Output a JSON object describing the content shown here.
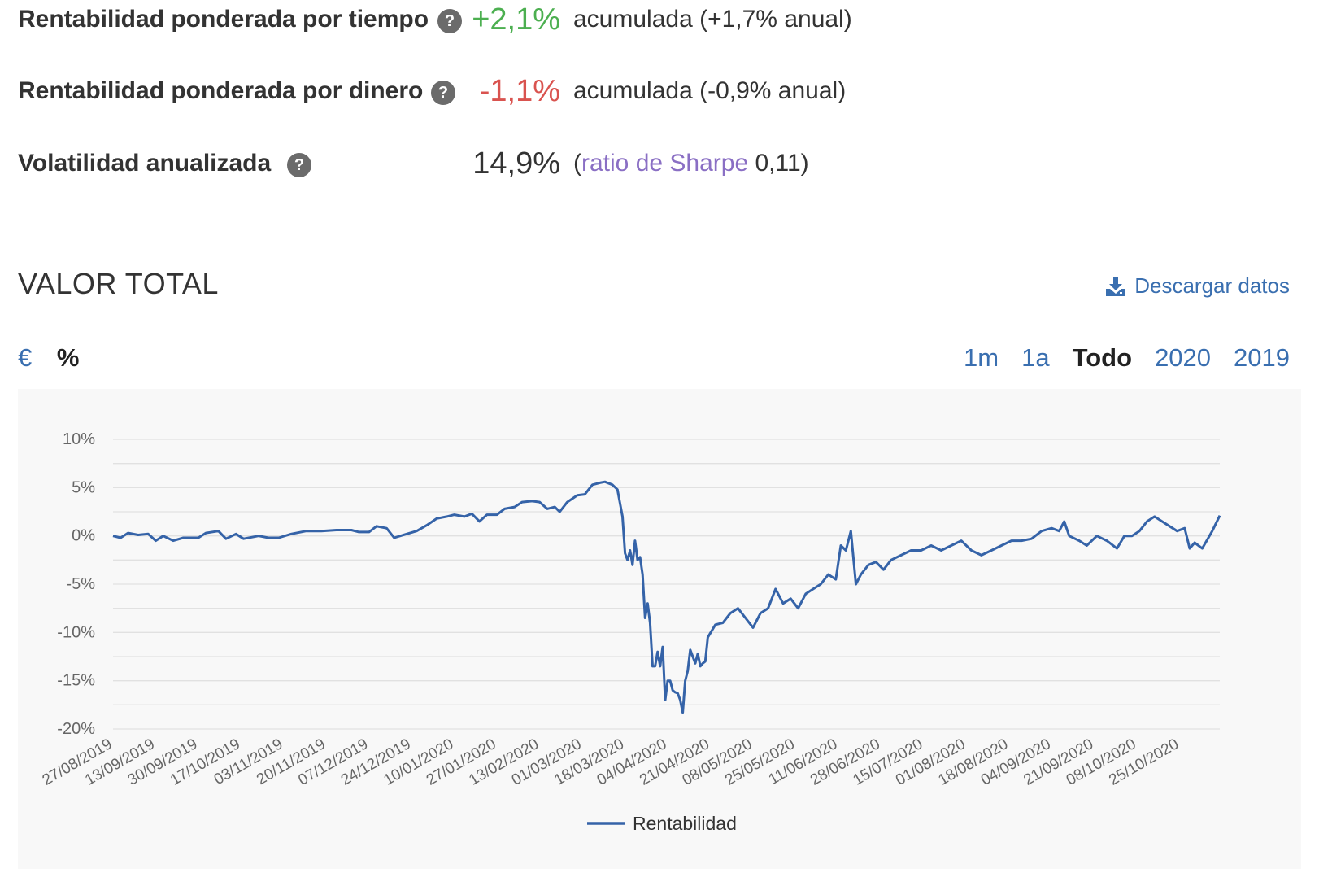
{
  "metrics": [
    {
      "label": "Rentabilidad ponderada por tiempo",
      "value": "+2,1%",
      "value_tone": "positive",
      "detail": "acumulada (+1,7% anual)"
    },
    {
      "label": "Rentabilidad ponderada por dinero",
      "value": "-1,1%",
      "value_tone": "negative",
      "detail": "acumulada (-0,9% anual)"
    },
    {
      "label": "Volatilidad anualizada",
      "value": "14,9%",
      "value_tone": "neutral",
      "detail_prefix": "(",
      "detail_link": "ratio de Sharpe",
      "detail_suffix": " 0,11)"
    }
  ],
  "help_icon_glyph": "?",
  "section_title": "VALOR TOTAL",
  "download_label": "Descargar datos",
  "unit_toggle": [
    {
      "label": "€",
      "active": false
    },
    {
      "label": "%",
      "active": true
    }
  ],
  "range_toggle": [
    {
      "label": "1m",
      "active": false
    },
    {
      "label": "1a",
      "active": false
    },
    {
      "label": "Todo",
      "active": true
    },
    {
      "label": "2020",
      "active": false
    },
    {
      "label": "2019",
      "active": false
    }
  ],
  "colors": {
    "line": "#3563a8",
    "positive": "#4caf50",
    "negative": "#d9534f",
    "link": "#3a6fb0",
    "sharpe_link": "#8a6fc4",
    "grid": "#e1e1e1",
    "chart_bg": "#f8f8f8"
  },
  "chart_data": {
    "type": "line",
    "title": "",
    "xlabel": "",
    "ylabel": "",
    "ylim": [
      -20,
      10
    ],
    "y_ticks": [
      10,
      5,
      0,
      -5,
      -10,
      -15,
      -20
    ],
    "y_tick_labels": [
      "10%",
      "5%",
      "0%",
      "-5%",
      "-10%",
      "-15%",
      "-20%"
    ],
    "x_range": [
      "2019-08-27",
      "2020-11-10"
    ],
    "x_ticks": [
      "2019-08-27",
      "2019-09-13",
      "2019-09-30",
      "2019-10-17",
      "2019-11-03",
      "2019-11-20",
      "2019-12-07",
      "2019-12-24",
      "2020-01-10",
      "2020-01-27",
      "2020-02-13",
      "2020-03-01",
      "2020-03-18",
      "2020-04-04",
      "2020-04-21",
      "2020-05-08",
      "2020-05-25",
      "2020-06-11",
      "2020-06-28",
      "2020-07-15",
      "2020-08-01",
      "2020-08-18",
      "2020-09-04",
      "2020-09-21",
      "2020-10-08",
      "2020-10-25"
    ],
    "x_tick_labels": [
      "27/08/2019",
      "13/09/2019",
      "30/09/2019",
      "17/10/2019",
      "03/11/2019",
      "20/11/2019",
      "07/12/2019",
      "24/12/2019",
      "10/01/2020",
      "27/01/2020",
      "13/02/2020",
      "01/03/2020",
      "18/03/2020",
      "04/04/2020",
      "21/04/2020",
      "08/05/2020",
      "25/05/2020",
      "11/06/2020",
      "28/06/2020",
      "15/07/2020",
      "01/08/2020",
      "18/08/2020",
      "04/09/2020",
      "21/09/2020",
      "08/10/2020",
      "25/10/2020"
    ],
    "grid": true,
    "legend_position": "bottom-center",
    "series": [
      {
        "name": "Rentabilidad",
        "values": [
          [
            "2019-08-27",
            0.0
          ],
          [
            "2019-08-30",
            -0.2
          ],
          [
            "2019-09-02",
            0.3
          ],
          [
            "2019-09-06",
            0.1
          ],
          [
            "2019-09-10",
            0.2
          ],
          [
            "2019-09-13",
            -0.5
          ],
          [
            "2019-09-16",
            0.0
          ],
          [
            "2019-09-20",
            -0.5
          ],
          [
            "2019-09-24",
            -0.2
          ],
          [
            "2019-09-30",
            -0.2
          ],
          [
            "2019-10-03",
            0.3
          ],
          [
            "2019-10-08",
            0.5
          ],
          [
            "2019-10-11",
            -0.3
          ],
          [
            "2019-10-15",
            0.2
          ],
          [
            "2019-10-18",
            -0.3
          ],
          [
            "2019-10-24",
            0.0
          ],
          [
            "2019-10-28",
            -0.2
          ],
          [
            "2019-11-01",
            -0.2
          ],
          [
            "2019-11-06",
            0.2
          ],
          [
            "2019-11-12",
            0.5
          ],
          [
            "2019-11-18",
            0.5
          ],
          [
            "2019-11-24",
            0.6
          ],
          [
            "2019-11-30",
            0.6
          ],
          [
            "2019-12-03",
            0.4
          ],
          [
            "2019-12-07",
            0.4
          ],
          [
            "2019-12-10",
            1.0
          ],
          [
            "2019-12-14",
            0.8
          ],
          [
            "2019-12-17",
            -0.2
          ],
          [
            "2019-12-22",
            0.2
          ],
          [
            "2019-12-26",
            0.5
          ],
          [
            "2019-12-30",
            1.1
          ],
          [
            "2020-01-03",
            1.8
          ],
          [
            "2020-01-07",
            2.0
          ],
          [
            "2020-01-10",
            2.2
          ],
          [
            "2020-01-14",
            2.0
          ],
          [
            "2020-01-17",
            2.3
          ],
          [
            "2020-01-20",
            1.5
          ],
          [
            "2020-01-23",
            2.2
          ],
          [
            "2020-01-27",
            2.2
          ],
          [
            "2020-01-30",
            2.8
          ],
          [
            "2020-02-03",
            3.0
          ],
          [
            "2020-02-06",
            3.5
          ],
          [
            "2020-02-10",
            3.6
          ],
          [
            "2020-02-13",
            3.5
          ],
          [
            "2020-02-16",
            2.8
          ],
          [
            "2020-02-19",
            3.0
          ],
          [
            "2020-02-21",
            2.5
          ],
          [
            "2020-02-24",
            3.5
          ],
          [
            "2020-02-28",
            4.2
          ],
          [
            "2020-03-02",
            4.3
          ],
          [
            "2020-03-05",
            5.3
          ],
          [
            "2020-03-08",
            5.5
          ],
          [
            "2020-03-10",
            5.6
          ],
          [
            "2020-03-13",
            5.3
          ],
          [
            "2020-03-15",
            4.8
          ],
          [
            "2020-03-17",
            2.0
          ],
          [
            "2020-03-18",
            -1.8
          ],
          [
            "2020-03-19",
            -2.5
          ],
          [
            "2020-03-20",
            -1.5
          ],
          [
            "2020-03-21",
            -3.0
          ],
          [
            "2020-03-22",
            -0.5
          ],
          [
            "2020-03-23",
            -2.5
          ],
          [
            "2020-03-24",
            -2.2
          ],
          [
            "2020-03-25",
            -4.0
          ],
          [
            "2020-03-26",
            -8.5
          ],
          [
            "2020-03-27",
            -7.0
          ],
          [
            "2020-03-28",
            -9.0
          ],
          [
            "2020-03-29",
            -13.5
          ],
          [
            "2020-03-30",
            -13.5
          ],
          [
            "2020-03-31",
            -12.0
          ],
          [
            "2020-04-01",
            -13.5
          ],
          [
            "2020-04-02",
            -11.5
          ],
          [
            "2020-04-03",
            -17.0
          ],
          [
            "2020-04-04",
            -15.0
          ],
          [
            "2020-04-05",
            -15.0
          ],
          [
            "2020-04-06",
            -16.0
          ],
          [
            "2020-04-07",
            -16.2
          ],
          [
            "2020-04-08",
            -16.3
          ],
          [
            "2020-04-09",
            -17.0
          ],
          [
            "2020-04-10",
            -18.3
          ],
          [
            "2020-04-11",
            -15.0
          ],
          [
            "2020-04-12",
            -14.0
          ],
          [
            "2020-04-13",
            -11.8
          ],
          [
            "2020-04-14",
            -12.5
          ],
          [
            "2020-04-15",
            -13.2
          ],
          [
            "2020-04-16",
            -12.2
          ],
          [
            "2020-04-17",
            -13.5
          ],
          [
            "2020-04-18",
            -13.2
          ],
          [
            "2020-04-19",
            -13.0
          ],
          [
            "2020-04-20",
            -10.5
          ],
          [
            "2020-04-23",
            -9.2
          ],
          [
            "2020-04-26",
            -9.0
          ],
          [
            "2020-04-29",
            -8.0
          ],
          [
            "2020-05-02",
            -7.5
          ],
          [
            "2020-05-05",
            -8.5
          ],
          [
            "2020-05-08",
            -9.5
          ],
          [
            "2020-05-11",
            -8.0
          ],
          [
            "2020-05-14",
            -7.5
          ],
          [
            "2020-05-17",
            -5.5
          ],
          [
            "2020-05-20",
            -7.0
          ],
          [
            "2020-05-23",
            -6.5
          ],
          [
            "2020-05-26",
            -7.5
          ],
          [
            "2020-05-29",
            -6.0
          ],
          [
            "2020-06-01",
            -5.5
          ],
          [
            "2020-06-04",
            -5.0
          ],
          [
            "2020-06-07",
            -4.0
          ],
          [
            "2020-06-10",
            -4.5
          ],
          [
            "2020-06-12",
            -1.0
          ],
          [
            "2020-06-14",
            -1.5
          ],
          [
            "2020-06-16",
            0.5
          ],
          [
            "2020-06-18",
            -5.0
          ],
          [
            "2020-06-20",
            -4.0
          ],
          [
            "2020-06-23",
            -3.0
          ],
          [
            "2020-06-26",
            -2.7
          ],
          [
            "2020-06-29",
            -3.5
          ],
          [
            "2020-07-02",
            -2.5
          ],
          [
            "2020-07-06",
            -2.0
          ],
          [
            "2020-07-10",
            -1.5
          ],
          [
            "2020-07-14",
            -1.5
          ],
          [
            "2020-07-18",
            -1.0
          ],
          [
            "2020-07-22",
            -1.5
          ],
          [
            "2020-07-26",
            -1.0
          ],
          [
            "2020-07-30",
            -0.5
          ],
          [
            "2020-08-03",
            -1.5
          ],
          [
            "2020-08-07",
            -2.0
          ],
          [
            "2020-08-11",
            -1.5
          ],
          [
            "2020-08-15",
            -1.0
          ],
          [
            "2020-08-19",
            -0.5
          ],
          [
            "2020-08-23",
            -0.5
          ],
          [
            "2020-08-27",
            -0.3
          ],
          [
            "2020-08-31",
            0.5
          ],
          [
            "2020-09-04",
            0.8
          ],
          [
            "2020-09-07",
            0.5
          ],
          [
            "2020-09-09",
            1.5
          ],
          [
            "2020-09-11",
            0.0
          ],
          [
            "2020-09-15",
            -0.5
          ],
          [
            "2020-09-18",
            -1.0
          ],
          [
            "2020-09-22",
            0.0
          ],
          [
            "2020-09-26",
            -0.5
          ],
          [
            "2020-09-30",
            -1.3
          ],
          [
            "2020-10-03",
            0.0
          ],
          [
            "2020-10-06",
            0.0
          ],
          [
            "2020-10-09",
            0.5
          ],
          [
            "2020-10-12",
            1.5
          ],
          [
            "2020-10-15",
            2.0
          ],
          [
            "2020-10-18",
            1.5
          ],
          [
            "2020-10-21",
            1.0
          ],
          [
            "2020-10-24",
            0.5
          ],
          [
            "2020-10-27",
            0.8
          ],
          [
            "2020-10-29",
            -1.3
          ],
          [
            "2020-10-31",
            -0.7
          ],
          [
            "2020-11-03",
            -1.3
          ],
          [
            "2020-11-07",
            0.5
          ],
          [
            "2020-11-10",
            2.1
          ]
        ]
      }
    ]
  }
}
